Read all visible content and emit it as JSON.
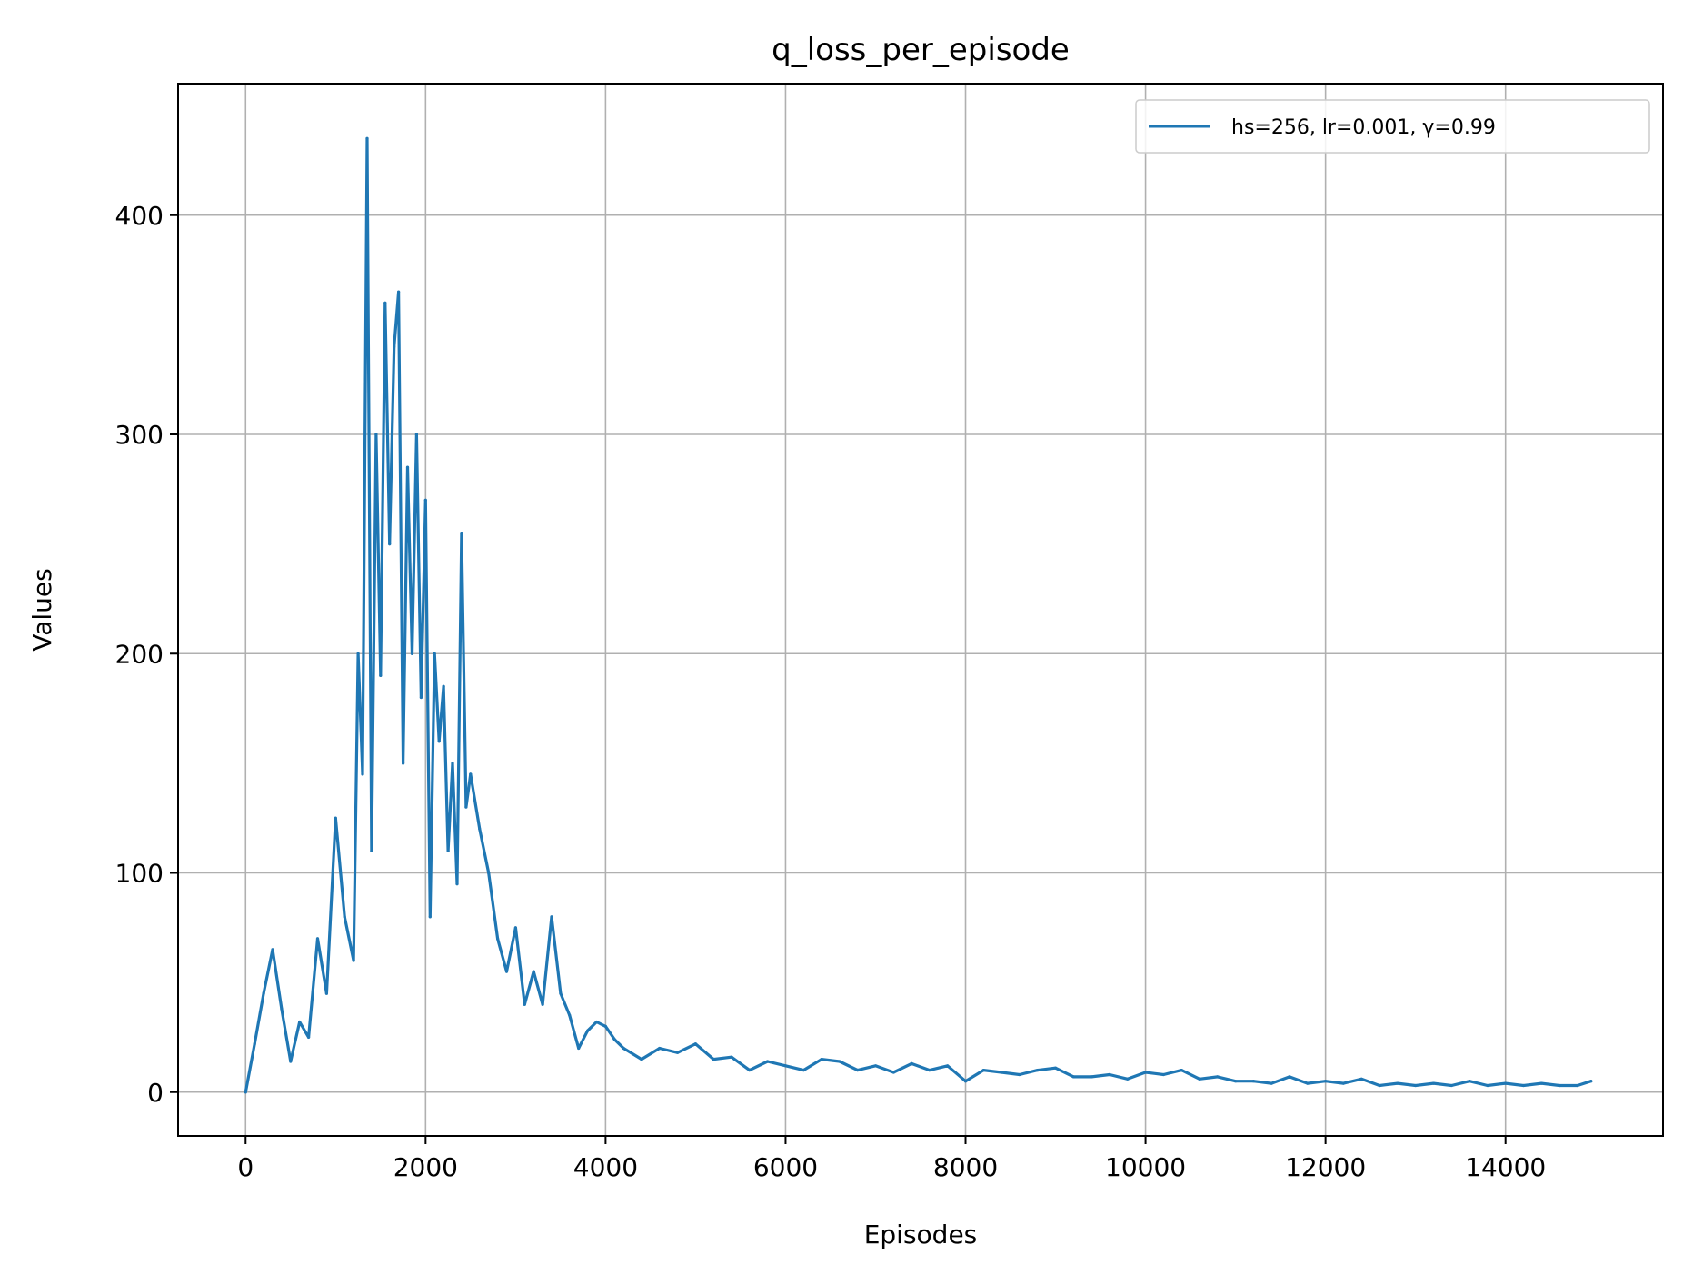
{
  "chart_data": {
    "type": "line",
    "title": "q_loss_per_episode",
    "xlabel": "Episodes",
    "ylabel": "Values",
    "xlim": [
      -750,
      15750
    ],
    "ylim": [
      -20,
      460
    ],
    "xticks": [
      0,
      2000,
      4000,
      6000,
      8000,
      10000,
      12000,
      14000
    ],
    "xtick_labels": [
      "0",
      "2000",
      "4000",
      "6000",
      "8000",
      "10000",
      "12000",
      "14000"
    ],
    "yticks": [
      0,
      100,
      200,
      300,
      400
    ],
    "ytick_labels": [
      "0",
      "100",
      "200",
      "300",
      "400"
    ],
    "grid": true,
    "legend_position": "top-right",
    "series": [
      {
        "name": "hs=256, lr=0.001, γ=0.99",
        "color": "#1f77b4",
        "x": [
          0,
          100,
          200,
          300,
          400,
          500,
          600,
          700,
          800,
          900,
          1000,
          1100,
          1200,
          1250,
          1300,
          1350,
          1400,
          1450,
          1500,
          1550,
          1600,
          1650,
          1700,
          1750,
          1800,
          1850,
          1900,
          1950,
          2000,
          2050,
          2100,
          2150,
          2200,
          2250,
          2300,
          2350,
          2400,
          2450,
          2500,
          2600,
          2700,
          2800,
          2900,
          3000,
          3100,
          3200,
          3300,
          3400,
          3500,
          3600,
          3700,
          3800,
          3900,
          4000,
          4100,
          4200,
          4400,
          4600,
          4800,
          5000,
          5200,
          5400,
          5600,
          5800,
          6000,
          6200,
          6400,
          6600,
          6800,
          7000,
          7200,
          7400,
          7600,
          7800,
          8000,
          8200,
          8400,
          8600,
          8800,
          9000,
          9200,
          9400,
          9600,
          9800,
          10000,
          10200,
          10400,
          10600,
          10800,
          11000,
          11200,
          11400,
          11600,
          11800,
          12000,
          12200,
          12400,
          12600,
          12800,
          13000,
          13200,
          13400,
          13600,
          13800,
          14000,
          14200,
          14400,
          14600,
          14800,
          14950
        ],
        "values": [
          0,
          22,
          45,
          65,
          38,
          14,
          32,
          25,
          70,
          45,
          125,
          80,
          60,
          200,
          145,
          435,
          110,
          300,
          190,
          360,
          250,
          340,
          365,
          150,
          285,
          200,
          300,
          180,
          270,
          80,
          200,
          160,
          185,
          110,
          150,
          95,
          255,
          130,
          145,
          120,
          100,
          70,
          55,
          75,
          40,
          55,
          40,
          80,
          45,
          35,
          20,
          28,
          32,
          30,
          24,
          20,
          15,
          20,
          18,
          22,
          15,
          16,
          10,
          14,
          12,
          10,
          15,
          14,
          10,
          12,
          9,
          13,
          10,
          12,
          5,
          10,
          9,
          8,
          10,
          11,
          7,
          7,
          8,
          6,
          9,
          8,
          10,
          6,
          7,
          5,
          5,
          4,
          7,
          4,
          5,
          4,
          6,
          3,
          4,
          3,
          4,
          3,
          5,
          3,
          4,
          3,
          4,
          3,
          3,
          5
        ]
      }
    ]
  }
}
